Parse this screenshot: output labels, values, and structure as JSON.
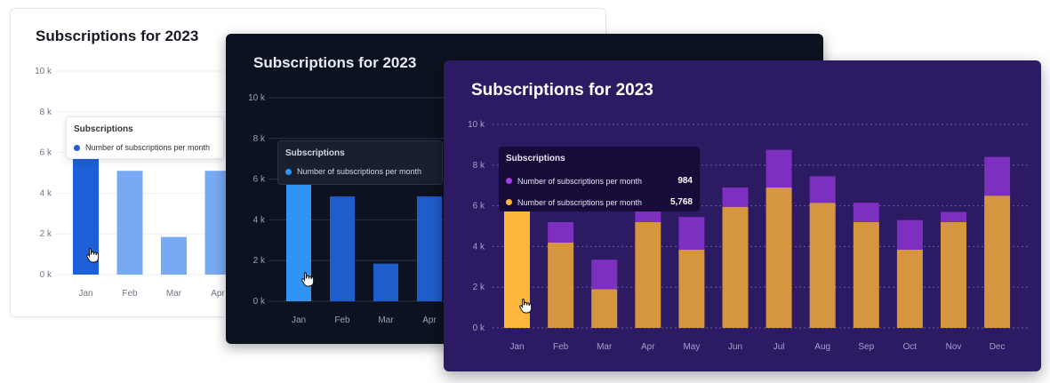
{
  "chart_data": [
    {
      "type": "bar",
      "title": "Subscriptions for 2023",
      "theme": "light",
      "categories": [
        "Jan",
        "Feb",
        "Mar",
        "Apr"
      ],
      "y_ticks": [
        "0 k",
        "2 k",
        "4 k",
        "6 k",
        "8 k",
        "10 k"
      ],
      "ylim": [
        0,
        10000
      ],
      "grid": true,
      "series": [
        {
          "name": "Number of subscriptions per month",
          "values": [
            5768,
            5100,
            1850,
            5100
          ],
          "color": "#78aaf4",
          "highlight_color": "#1c5fd6"
        }
      ],
      "highlighted_index": 0,
      "tooltip": {
        "title": "Subscriptions",
        "rows": [
          "Number of subscriptions per month"
        ]
      }
    },
    {
      "type": "bar",
      "title": "Subscriptions for 2023",
      "theme": "dark",
      "categories": [
        "Jan",
        "Feb",
        "Mar",
        "Apr"
      ],
      "y_ticks": [
        "0 k",
        "2 k",
        "4 k",
        "6 k",
        "8 k",
        "10 k"
      ],
      "ylim": [
        0,
        10000
      ],
      "grid": true,
      "series": [
        {
          "name": "Number of subscriptions per month",
          "values": [
            5768,
            5150,
            1850,
            5150
          ],
          "color": "#1f5ccc",
          "highlight_color": "#3094f5"
        }
      ],
      "highlighted_index": 0,
      "tooltip": {
        "title": "Subscriptions",
        "rows": [
          "Number of subscriptions per month"
        ]
      }
    },
    {
      "type": "bar",
      "stacked": true,
      "title": "Subscriptions for 2023",
      "theme": "purple",
      "categories": [
        "Jan",
        "Feb",
        "Mar",
        "Apr",
        "May",
        "Jun",
        "Jul",
        "Aug",
        "Sep",
        "Oct",
        "Nov",
        "Dec"
      ],
      "y_ticks": [
        "0 k",
        "2 k",
        "4 k",
        "6 k",
        "8 k",
        "10 k"
      ],
      "ylim": [
        0,
        10000
      ],
      "grid": true,
      "series": [
        {
          "name": "Number of subscriptions per month",
          "values": [
            5768,
            4200,
            1900,
            5200,
            3850,
            5950,
            6900,
            6150,
            5200,
            3850,
            5200,
            6500
          ],
          "color": "#d6953f",
          "highlight_color": "#ffb63c"
        },
        {
          "name": "Number of subscriptions per month",
          "values": [
            984,
            1000,
            1450,
            1600,
            1600,
            950,
            1850,
            1300,
            950,
            1450,
            500,
            1900
          ],
          "color": "#7d2fbf",
          "highlight_color": "#a23ce6"
        }
      ],
      "highlighted_index": 0,
      "tooltip": {
        "title": "Subscriptions",
        "rows": [
          "Number of subscriptions per month",
          "Number of subscriptions per month"
        ],
        "values": [
          "984",
          "5,768"
        ]
      }
    }
  ]
}
